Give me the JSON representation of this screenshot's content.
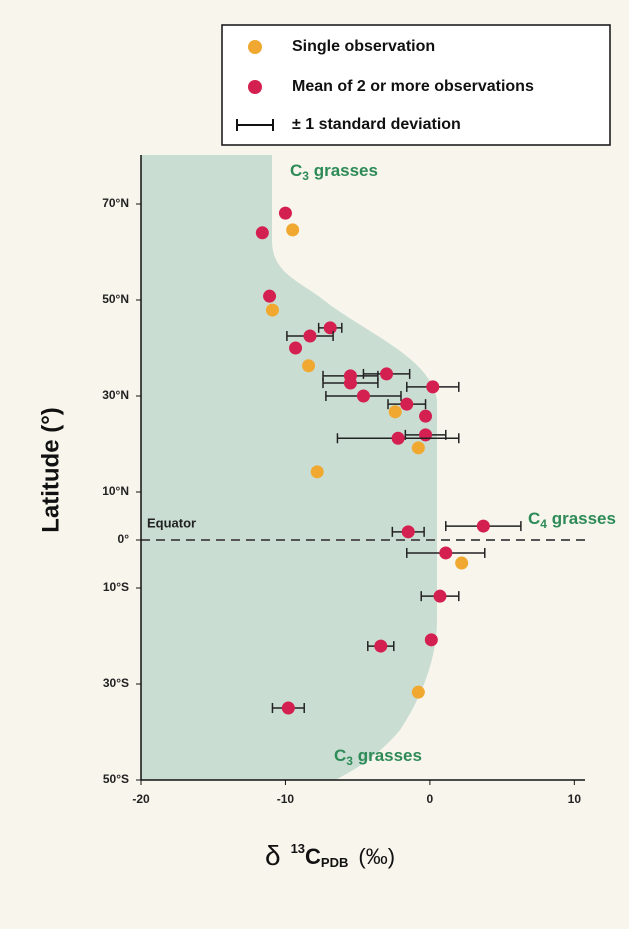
{
  "chart_data": {
    "type": "scatter",
    "xlabel": {
      "symbol": "δ",
      "superscript": "13",
      "base": "C",
      "subscript": "PDB",
      "unit": "(‰)"
    },
    "ylabel": "Latitude (°)",
    "xlim": [
      -20,
      10.6
    ],
    "ylim": [
      -50,
      80
    ],
    "xticks": [
      -20,
      -10,
      0,
      10
    ],
    "yticks": [
      {
        "value": 70,
        "label": "70°N"
      },
      {
        "value": 50,
        "label": "50°N"
      },
      {
        "value": 30,
        "label": "30°N"
      },
      {
        "value": 10,
        "label": "10°N"
      },
      {
        "value": 0,
        "label": "0°"
      },
      {
        "value": -10,
        "label": "10°S"
      },
      {
        "value": -30,
        "label": "30°S"
      },
      {
        "value": -50,
        "label": "50°S"
      }
    ],
    "series": [
      {
        "name": "Single observation",
        "color": "#f0a830",
        "x": [
          -9.5,
          -10.9,
          -8.4,
          -2.4,
          -0.8,
          -7.8,
          2.2,
          -0.8
        ],
        "y": [
          64.6,
          47.9,
          36.3,
          26.7,
          19.2,
          14.2,
          -4.8,
          -31.7
        ]
      },
      {
        "name": "Mean of 2 or more observations",
        "color": "#d42050",
        "x": [
          -10.0,
          -11.6,
          -11.1,
          -6.9,
          -8.3,
          -9.3,
          -5.5,
          -5.5,
          -3.0,
          0.2,
          -4.6,
          -1.6,
          -0.3,
          -0.3,
          -2.2,
          3.7,
          -1.5,
          1.1,
          0.7,
          0.1,
          -3.4,
          -9.8
        ],
        "y": [
          68.1,
          64.0,
          50.8,
          44.2,
          42.5,
          40.0,
          34.2,
          32.7,
          34.6,
          31.9,
          30.0,
          28.3,
          25.8,
          21.9,
          21.2,
          2.9,
          1.7,
          -2.7,
          -11.7,
          -20.8,
          -22.1,
          -35.0
        ],
        "xerr": [
          null,
          null,
          null,
          0.8,
          1.6,
          null,
          1.9,
          1.9,
          1.6,
          1.8,
          2.6,
          1.3,
          null,
          1.4,
          4.2,
          2.6,
          1.1,
          2.7,
          1.3,
          null,
          0.9,
          1.1
        ]
      }
    ],
    "error_legend": "±  1 standard deviation",
    "annotations": [
      {
        "base": "C",
        "subscript": "3",
        "text": " grasses"
      },
      {
        "base": "C",
        "subscript": "4",
        "text": " grasses"
      },
      {
        "base": "C",
        "subscript": "3",
        "text": " grasses"
      },
      {
        "text": "Equator"
      }
    ]
  }
}
